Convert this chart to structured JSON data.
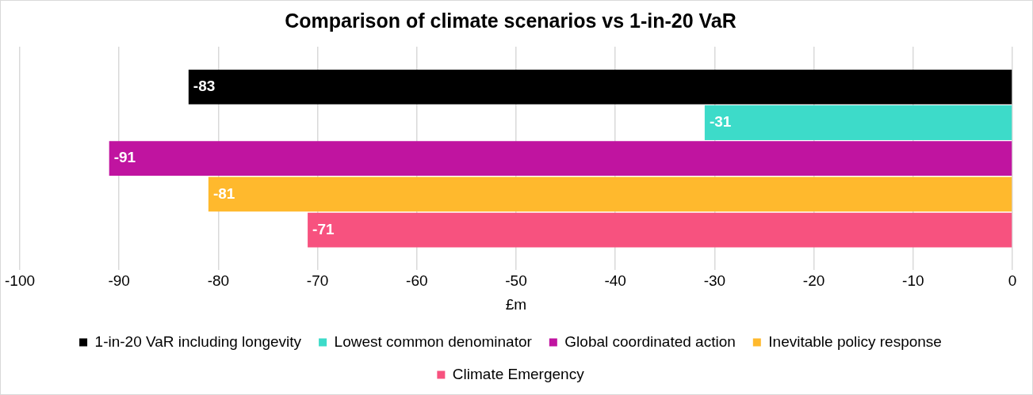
{
  "chart_data": {
    "type": "bar",
    "orientation": "horizontal",
    "title": "Comparison of climate scenarios vs 1-in-20 VaR",
    "xlabel": "£m",
    "categories": [
      null
    ],
    "series": [
      {
        "name": "1-in-20 VaR including longevity",
        "color": "#000000",
        "values": [
          -83
        ]
      },
      {
        "name": "Lowest common denominator",
        "color": "#3ddbc9",
        "values": [
          -31
        ]
      },
      {
        "name": "Global coordinated action",
        "color": "#c014a0",
        "values": [
          -91
        ]
      },
      {
        "name": "Inevitable policy response",
        "color": "#ffb92d",
        "values": [
          -81
        ]
      },
      {
        "name": "Climate Emergency",
        "color": "#f7527f",
        "values": [
          -71
        ]
      }
    ],
    "data_labels": true,
    "xlim": [
      -100,
      0
    ],
    "xticks": [
      -100,
      -90,
      -80,
      -70,
      -60,
      -50,
      -40,
      -30,
      -20,
      -10,
      0
    ],
    "grid": "x",
    "legend": "bottom"
  }
}
